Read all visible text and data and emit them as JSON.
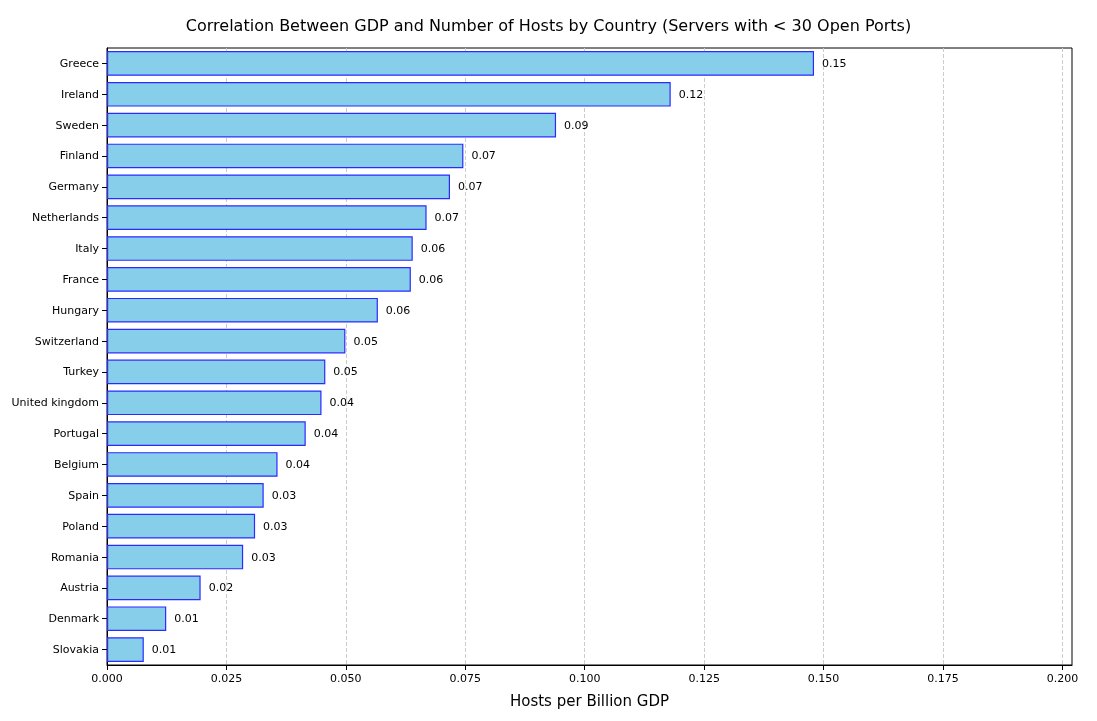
{
  "chart_data": {
    "type": "bar",
    "orientation": "horizontal",
    "title": "Correlation Between GDP and Number of Hosts by Country (Servers with < 30 Open Ports)",
    "xlabel": "Hosts per Billion GDP",
    "categories": [
      "Greece",
      "Ireland",
      "Sweden",
      "Finland",
      "Germany",
      "Netherlands",
      "Italy",
      "France",
      "Hungary",
      "Switzerland",
      "Turkey",
      "United kingdom",
      "Portugal",
      "Belgium",
      "Spain",
      "Poland",
      "Romania",
      "Austria",
      "Denmark",
      "Slovakia"
    ],
    "values": [
      0.148,
      0.118,
      0.094,
      0.0746,
      0.0718,
      0.0669,
      0.064,
      0.0636,
      0.0567,
      0.0499,
      0.0457,
      0.0449,
      0.0416,
      0.0357,
      0.0328,
      0.031,
      0.0285,
      0.0196,
      0.0124,
      0.0077
    ],
    "value_labels": [
      "0.15",
      "0.12",
      "0.09",
      "0.07",
      "0.07",
      "0.07",
      "0.06",
      "0.06",
      "0.06",
      "0.05",
      "0.05",
      "0.04",
      "0.04",
      "0.04",
      "0.03",
      "0.03",
      "0.03",
      "0.02",
      "0.01",
      "0.01"
    ],
    "color": "#87ceeb",
    "xlim": [
      0,
      0.202
    ],
    "xticks": [
      {
        "value": 0,
        "label": "0.000"
      },
      {
        "value": 0.025,
        "label": "0.025"
      },
      {
        "value": 0.05,
        "label": "0.050"
      },
      {
        "value": 0.075,
        "label": "0.075"
      },
      {
        "value": 0.1,
        "label": "0.100"
      },
      {
        "value": 0.125,
        "label": "0.125"
      },
      {
        "value": 0.15,
        "label": "0.150"
      },
      {
        "value": 0.175,
        "label": "0.175"
      },
      {
        "value": 0.2,
        "label": "0.200"
      }
    ],
    "grid": "x",
    "line_style": "dashed"
  }
}
